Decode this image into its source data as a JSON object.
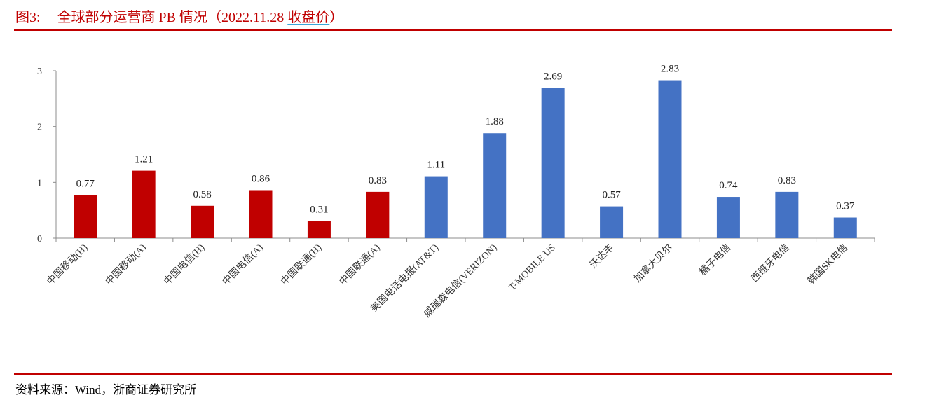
{
  "figure": {
    "label": "图3:",
    "title": "全球部分运营商 PB 情况（2022.11.28 ",
    "title_underlined": "收盘价",
    "title_end": "）"
  },
  "source": {
    "prefix": "资料来源：",
    "wind": "Wind",
    "sep": "，",
    "org_underlined": "浙商证券",
    "org_rest": "研究所"
  },
  "chart_data": {
    "type": "bar",
    "title": "",
    "xlabel": "",
    "ylabel": "",
    "ylim": [
      0,
      3
    ],
    "yticks": [
      "0",
      "1",
      "2",
      "3"
    ],
    "grid": false,
    "categories": [
      "中国移动(H)",
      "中国移动(A)",
      "中国电信(H)",
      "中国电信(A)",
      "中国联通(H)",
      "中国联通(A)",
      "美国电话电报(AT&T)",
      "威瑞森电信(VERIZON)",
      "T-MOBILE US",
      "沃达丰",
      "加拿大贝尔",
      "橘子电信",
      "西班牙电信",
      "韩国SK电信"
    ],
    "values": [
      0.77,
      1.21,
      0.58,
      0.86,
      0.31,
      0.83,
      1.11,
      1.88,
      2.69,
      0.57,
      2.83,
      0.74,
      0.83,
      0.37
    ],
    "value_labels": [
      "0.77",
      "1.21",
      "0.58",
      "0.86",
      "0.31",
      "0.83",
      "1.11",
      "1.88",
      "2.69",
      "0.57",
      "2.83",
      "0.74",
      "0.83",
      "0.37"
    ],
    "colors": [
      "#c00000",
      "#c00000",
      "#c00000",
      "#c00000",
      "#c00000",
      "#c00000",
      "#4472c4",
      "#4472c4",
      "#4472c4",
      "#4472c4",
      "#4472c4",
      "#4472c4",
      "#4472c4",
      "#4472c4"
    ]
  }
}
